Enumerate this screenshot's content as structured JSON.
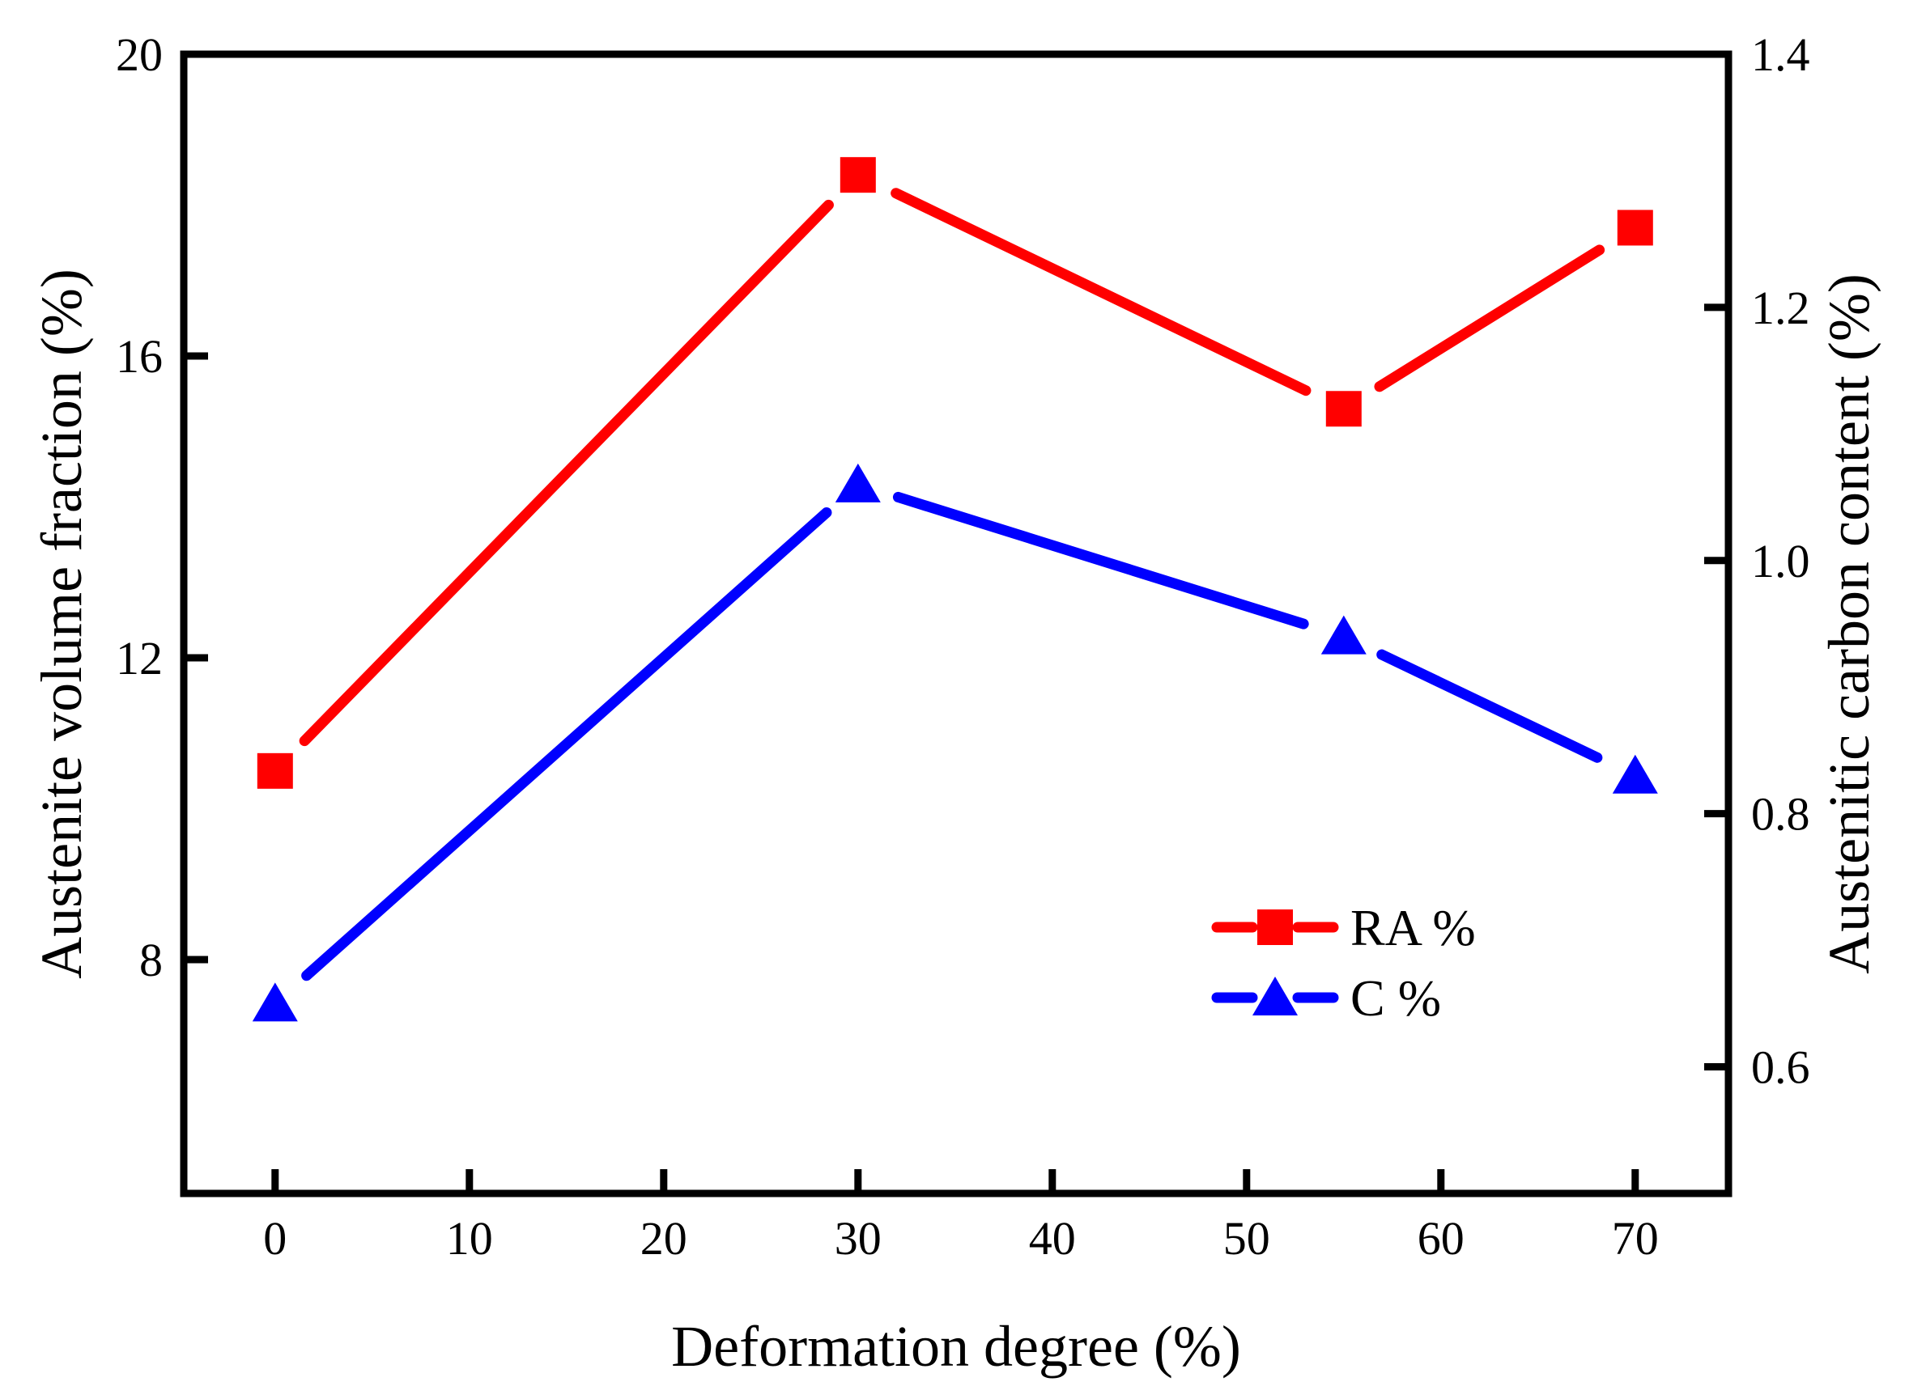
{
  "chart_data": {
    "type": "line",
    "title": "",
    "x_axis": {
      "label": "Deformation degree (%)",
      "ticks": [
        0,
        10,
        20,
        30,
        40,
        50,
        60,
        70
      ],
      "tick_labels": [
        "0",
        "10",
        "20",
        "30",
        "40",
        "50",
        "60",
        "70"
      ],
      "range": [
        -4.7,
        74.8
      ]
    },
    "y_axis_left": {
      "label": "Austenite volume fraction (%)",
      "ticks": [
        8,
        12,
        16,
        20
      ],
      "tick_labels": [
        "8",
        "12",
        "16",
        "20"
      ],
      "range": [
        4.9,
        20
      ]
    },
    "y_axis_right": {
      "label": "Austenitic carbon content (%)",
      "ticks": [
        0.6,
        0.8,
        1.0,
        1.2,
        1.4
      ],
      "tick_labels": [
        "0.6",
        "0.8",
        "1.0",
        "1.2",
        "1.4"
      ],
      "range": [
        0.5,
        1.4
      ]
    },
    "series": [
      {
        "name": "RA %",
        "axis": "left",
        "color": "#FF0000",
        "marker": "square",
        "x": [
          0,
          30,
          55,
          70
        ],
        "y": [
          10.5,
          18.4,
          15.3,
          17.7
        ]
      },
      {
        "name": "C %",
        "axis": "right",
        "color": "#0000FF",
        "marker": "triangle",
        "x": [
          0,
          30,
          55,
          70
        ],
        "y": [
          0.65,
          1.06,
          0.94,
          0.83
        ]
      }
    ],
    "legend": {
      "position": "inside-right",
      "entries": [
        "RA %",
        "C %"
      ]
    },
    "grid": false,
    "background": "#FFFFFF",
    "frame_color": "#000000"
  }
}
